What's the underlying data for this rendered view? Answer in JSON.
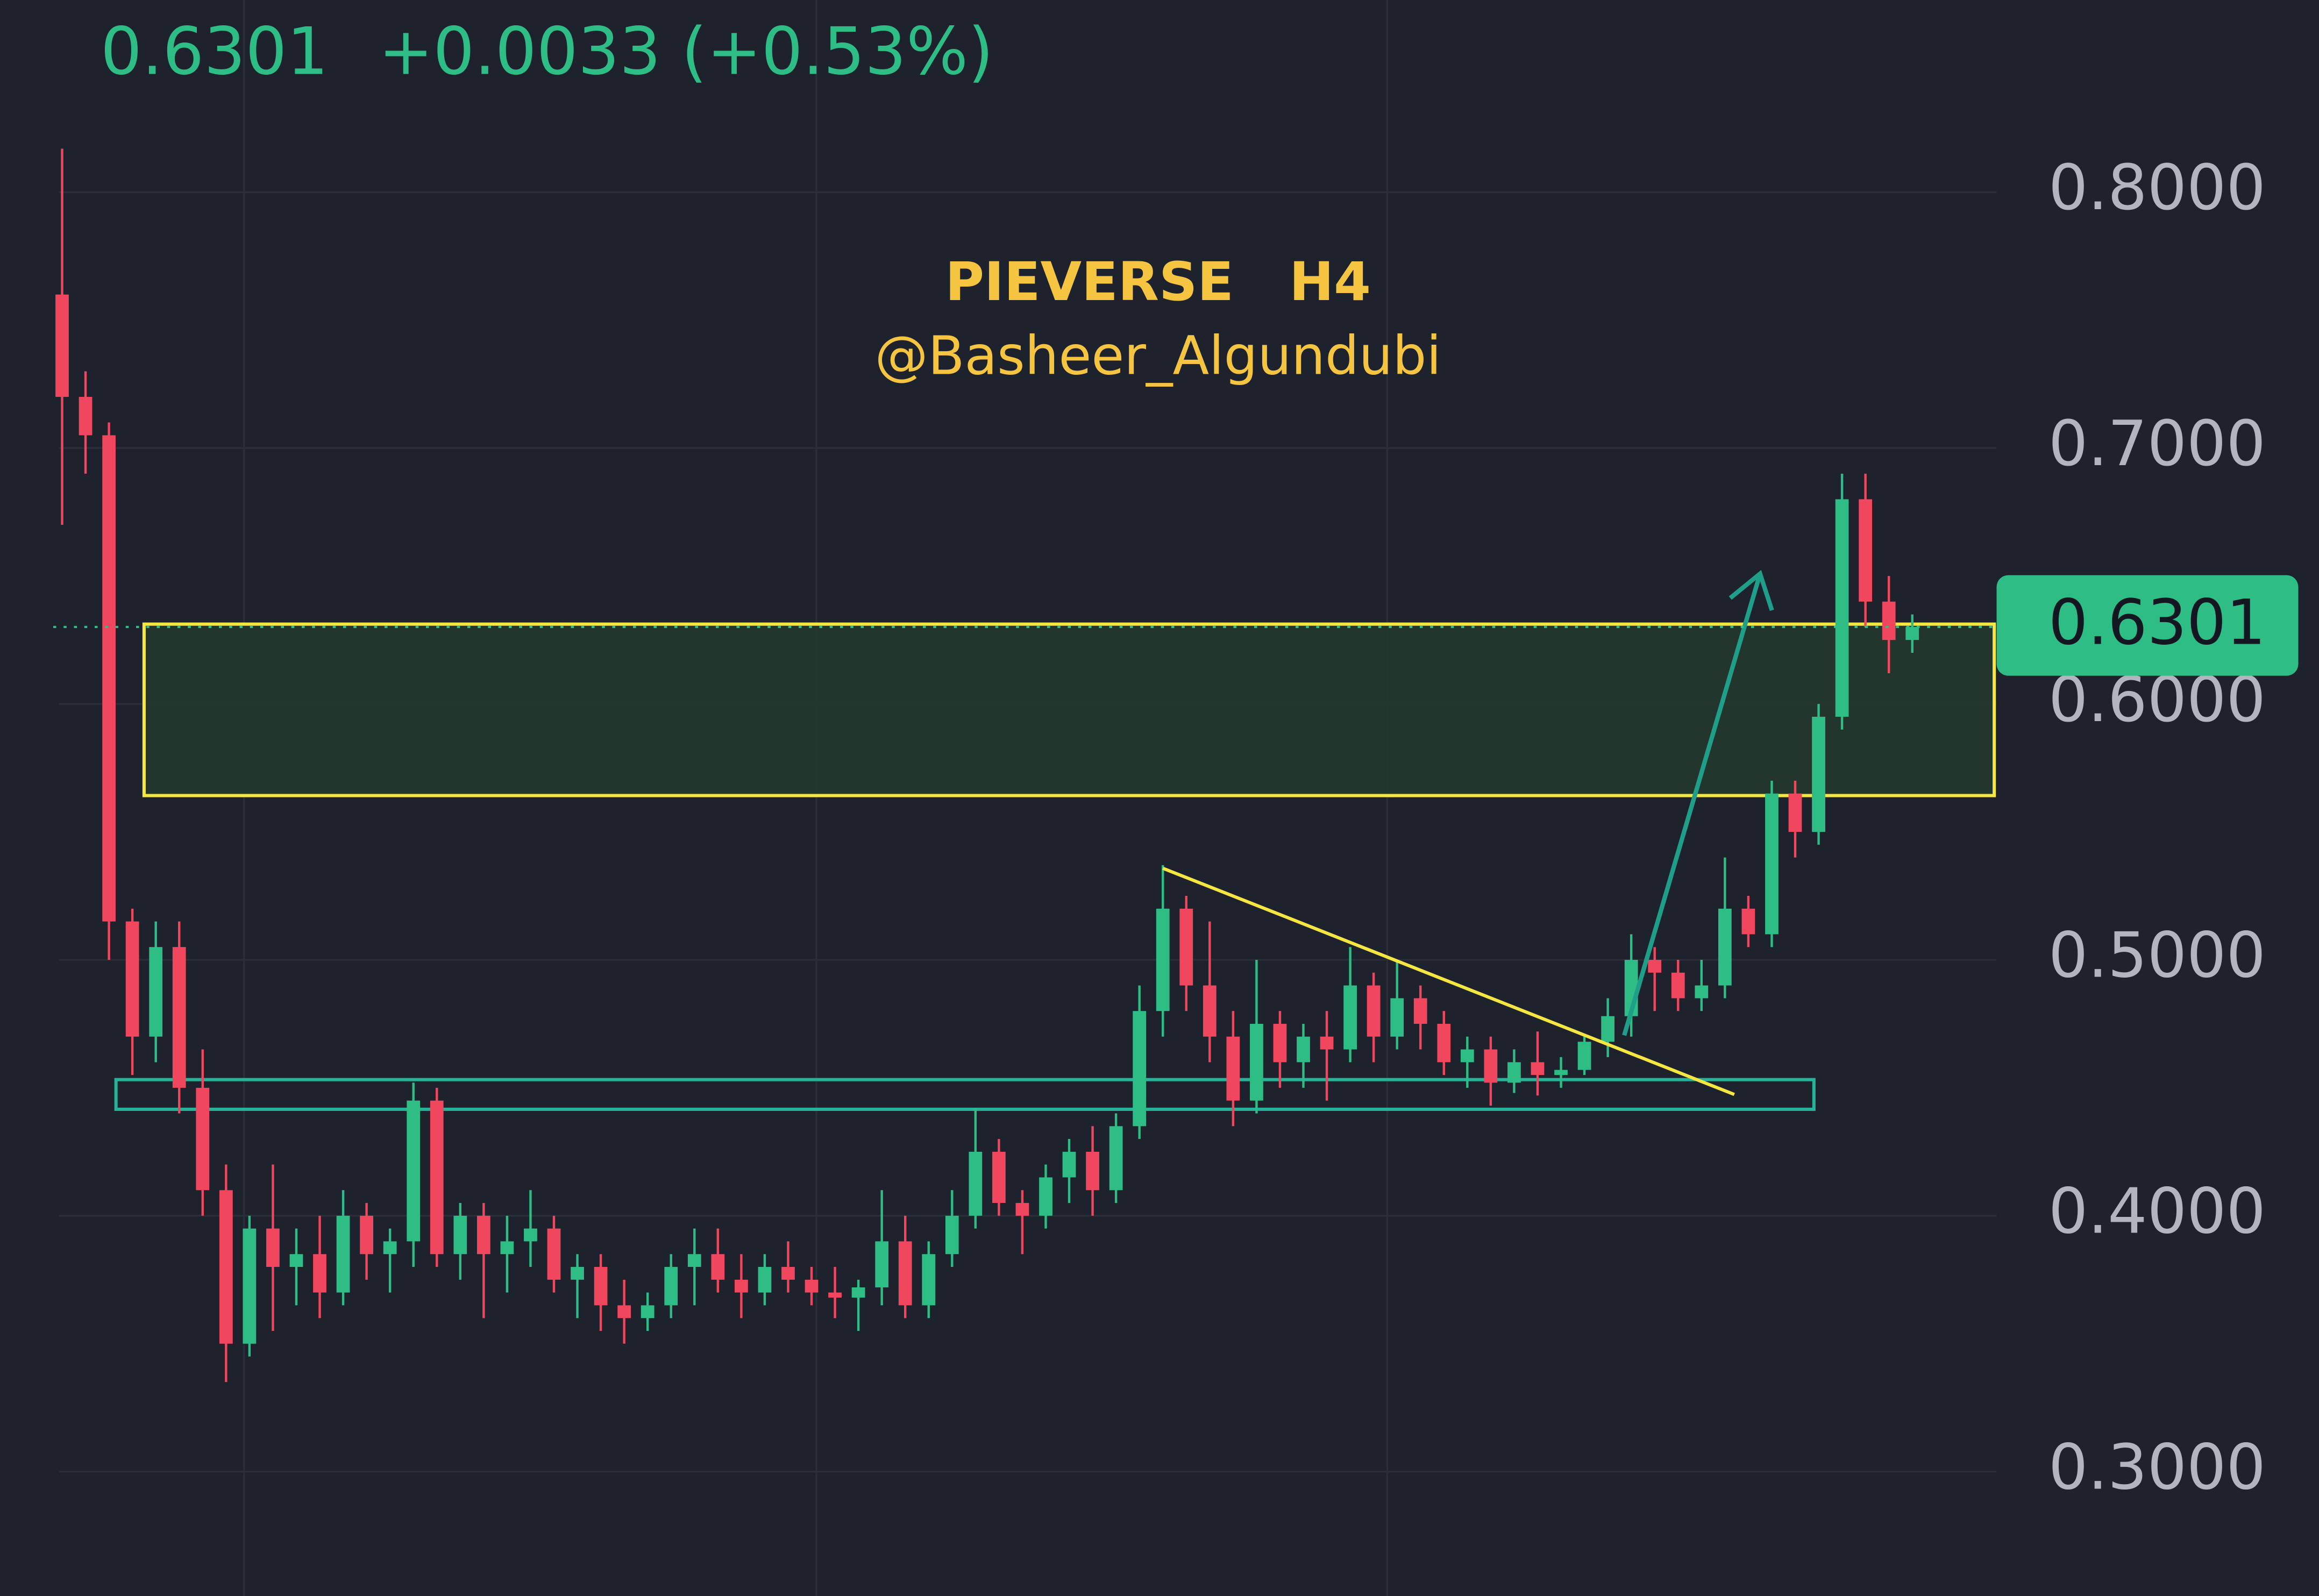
{
  "header": {
    "price": "0.6301",
    "change": "+0.0033 (+0.53%)"
  },
  "chart_data": {
    "type": "candlestick",
    "title": "PIEVERSE   H4",
    "subtitle": "@Basheer_Algundubi",
    "up_color": "#2ebd85",
    "down_color": "#f0475f",
    "grid": true,
    "ylim": [
      0.2514,
      0.8751
    ],
    "yticks": [
      {
        "value": 0.3,
        "label": "0.3000"
      },
      {
        "value": 0.4,
        "label": "0.4000"
      },
      {
        "value": 0.5,
        "label": "0.5000"
      },
      {
        "value": 0.6,
        "label": "0.6000"
      },
      {
        "value": 0.7,
        "label": "0.7000"
      },
      {
        "value": 0.8,
        "label": "0.8000"
      }
    ],
    "last_price": 0.6301,
    "open": [
      0.76,
      0.72,
      0.705,
      0.515,
      0.47,
      0.505,
      0.45,
      0.41,
      0.35,
      0.395,
      0.38,
      0.385,
      0.37,
      0.4,
      0.385,
      0.39,
      0.445,
      0.385,
      0.4,
      0.385,
      0.39,
      0.395,
      0.375,
      0.38,
      0.365,
      0.36,
      0.365,
      0.38,
      0.385,
      0.375,
      0.37,
      0.38,
      0.375,
      0.37,
      0.368,
      0.372,
      0.39,
      0.365,
      0.385,
      0.4,
      0.425,
      0.405,
      0.4,
      0.415,
      0.425,
      0.41,
      0.435,
      0.48,
      0.52,
      0.49,
      0.47,
      0.445,
      0.475,
      0.46,
      0.47,
      0.465,
      0.49,
      0.47,
      0.485,
      0.475,
      0.46,
      0.465,
      0.452,
      0.46,
      0.455,
      0.457,
      0.468,
      0.478,
      0.5,
      0.495,
      0.485,
      0.49,
      0.52,
      0.51,
      0.565,
      0.55,
      0.595,
      0.68,
      0.64,
      0.625
    ],
    "high": [
      0.817,
      0.73,
      0.71,
      0.52,
      0.515,
      0.515,
      0.465,
      0.42,
      0.4,
      0.42,
      0.395,
      0.4,
      0.41,
      0.405,
      0.395,
      0.452,
      0.45,
      0.405,
      0.405,
      0.4,
      0.41,
      0.4,
      0.385,
      0.385,
      0.375,
      0.37,
      0.385,
      0.395,
      0.395,
      0.385,
      0.385,
      0.39,
      0.38,
      0.38,
      0.375,
      0.41,
      0.4,
      0.39,
      0.41,
      0.442,
      0.43,
      0.41,
      0.42,
      0.43,
      0.435,
      0.44,
      0.49,
      0.537,
      0.525,
      0.515,
      0.48,
      0.5,
      0.48,
      0.475,
      0.48,
      0.505,
      0.495,
      0.5,
      0.49,
      0.48,
      0.47,
      0.47,
      0.465,
      0.472,
      0.462,
      0.47,
      0.485,
      0.51,
      0.505,
      0.5,
      0.5,
      0.54,
      0.525,
      0.57,
      0.57,
      0.6,
      0.69,
      0.69,
      0.65,
      0.635
    ],
    "low": [
      0.67,
      0.69,
      0.5,
      0.455,
      0.46,
      0.44,
      0.4,
      0.335,
      0.345,
      0.355,
      0.365,
      0.36,
      0.365,
      0.375,
      0.37,
      0.38,
      0.38,
      0.375,
      0.36,
      0.37,
      0.38,
      0.37,
      0.36,
      0.355,
      0.35,
      0.355,
      0.36,
      0.365,
      0.37,
      0.36,
      0.365,
      0.37,
      0.365,
      0.36,
      0.355,
      0.365,
      0.36,
      0.36,
      0.38,
      0.395,
      0.4,
      0.385,
      0.395,
      0.405,
      0.4,
      0.405,
      0.43,
      0.47,
      0.48,
      0.46,
      0.435,
      0.44,
      0.45,
      0.45,
      0.445,
      0.46,
      0.46,
      0.465,
      0.465,
      0.455,
      0.45,
      0.443,
      0.448,
      0.447,
      0.45,
      0.455,
      0.462,
      0.47,
      0.48,
      0.48,
      0.48,
      0.485,
      0.505,
      0.505,
      0.54,
      0.545,
      0.59,
      0.63,
      0.612,
      0.62
    ],
    "close": [
      0.72,
      0.705,
      0.515,
      0.47,
      0.505,
      0.45,
      0.41,
      0.35,
      0.395,
      0.38,
      0.385,
      0.37,
      0.4,
      0.385,
      0.39,
      0.445,
      0.385,
      0.4,
      0.385,
      0.39,
      0.395,
      0.375,
      0.38,
      0.365,
      0.36,
      0.365,
      0.38,
      0.385,
      0.375,
      0.37,
      0.38,
      0.375,
      0.37,
      0.368,
      0.372,
      0.39,
      0.365,
      0.385,
      0.4,
      0.425,
      0.405,
      0.4,
      0.415,
      0.425,
      0.41,
      0.435,
      0.48,
      0.52,
      0.49,
      0.47,
      0.445,
      0.475,
      0.46,
      0.47,
      0.465,
      0.49,
      0.47,
      0.485,
      0.475,
      0.46,
      0.465,
      0.452,
      0.46,
      0.455,
      0.457,
      0.468,
      0.478,
      0.5,
      0.495,
      0.485,
      0.49,
      0.52,
      0.51,
      0.565,
      0.55,
      0.595,
      0.68,
      0.64,
      0.625,
      0.6301
    ],
    "annotations": [
      {
        "kind": "zone",
        "color": "#f5e642",
        "fill": "#23392e",
        "top": 0.6312,
        "bottom": 0.5642,
        "start": 3.5,
        "end": 82.5
      },
      {
        "kind": "zone",
        "color": "#26b39a",
        "top": 0.4532,
        "bottom": 0.4416,
        "start": 2.3,
        "end": 74.8
      },
      {
        "kind": "line",
        "color": "#f5e642",
        "start": 47,
        "end": 71.4,
        "from": 0.5358,
        "to": 0.4474
      },
      {
        "kind": "arrow",
        "color": "#1f9e8a",
        "start": 66.7,
        "end": 72.5,
        "from": 0.4705,
        "to": 0.6509
      }
    ]
  }
}
